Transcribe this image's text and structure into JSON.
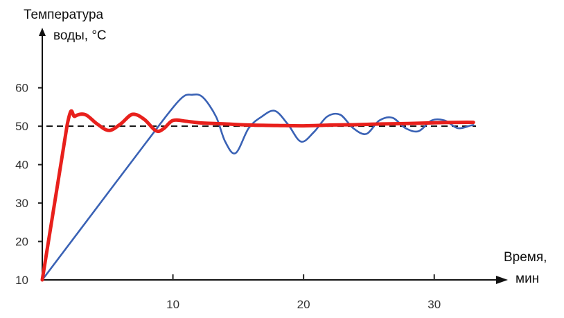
{
  "chart_data": {
    "type": "line",
    "ylabel_line1": "Температура",
    "ylabel_line2": "воды, °С",
    "xlabel_line1": "Время,",
    "xlabel_line2": "мин",
    "y_ticks": [
      10,
      20,
      30,
      40,
      50,
      60
    ],
    "x_ticks": [
      10,
      20,
      30
    ],
    "xlim": [
      0,
      35
    ],
    "ylim": [
      10,
      65
    ],
    "setpoint": 50,
    "series": [
      {
        "color": "#e8201c",
        "x": [
          0,
          1.9,
          2.5,
          3.3,
          4.2,
          5.1,
          6.0,
          6.9,
          7.8,
          8.7,
          9.3,
          10.0,
          11.0,
          12.0,
          14.0,
          16.0,
          18.0,
          20.0,
          22.0,
          24.0,
          26.0,
          28.0,
          30.0,
          32.0,
          33.0
        ],
        "y": [
          10,
          50.2,
          52.6,
          53.0,
          50.6,
          48.9,
          50.6,
          53.1,
          51.8,
          48.8,
          49.4,
          51.5,
          51.3,
          50.9,
          50.6,
          50.3,
          50.2,
          50.1,
          50.3,
          50.4,
          50.6,
          50.7,
          50.9,
          51.0,
          51.0
        ]
      },
      {
        "color": "#3a62b5",
        "x": [
          0,
          4,
          8,
          10.5,
          11.5,
          12.3,
          13.3,
          14.0,
          14.8,
          15.8,
          16.8,
          17.8,
          18.8,
          19.8,
          20.8,
          21.8,
          22.8,
          23.8,
          24.8,
          25.8,
          26.8,
          27.8,
          28.8,
          29.8,
          30.8,
          31.8,
          32.8,
          33.0
        ],
        "y": [
          10,
          28,
          46,
          56.8,
          58.2,
          57.5,
          52.5,
          46.0,
          43.0,
          49.5,
          52.5,
          54.0,
          50.5,
          46.0,
          48.5,
          52.5,
          53.0,
          49.5,
          48.0,
          51.5,
          52.2,
          49.5,
          48.7,
          51.5,
          51.5,
          49.5,
          50.2,
          50.3
        ]
      }
    ]
  }
}
